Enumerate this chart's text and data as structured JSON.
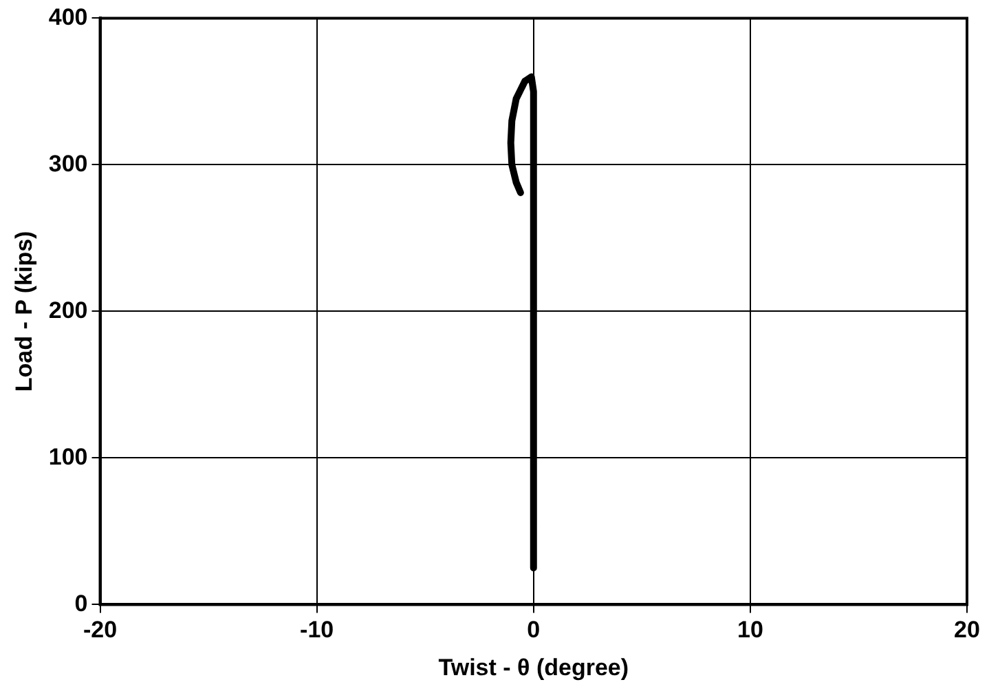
{
  "chart_data": {
    "type": "line",
    "xlabel": "Twist - θ (degree)",
    "ylabel": "Load - P (kips)",
    "xlim": [
      -20,
      20
    ],
    "xticks": [
      -20,
      -10,
      0,
      10,
      20
    ],
    "ylim": [
      0,
      400
    ],
    "yticks": [
      0,
      100,
      200,
      300,
      400
    ],
    "grid": true,
    "series": [
      {
        "color": "#000000",
        "x": [
          0,
          0,
          0,
          0,
          0,
          -0.1,
          -0.4,
          -0.8,
          -1.0,
          -1.05,
          -1.0,
          -0.8,
          -0.6
        ],
        "values": [
          25,
          100,
          200,
          300,
          350,
          360,
          357,
          345,
          330,
          315,
          300,
          288,
          281
        ]
      }
    ]
  }
}
